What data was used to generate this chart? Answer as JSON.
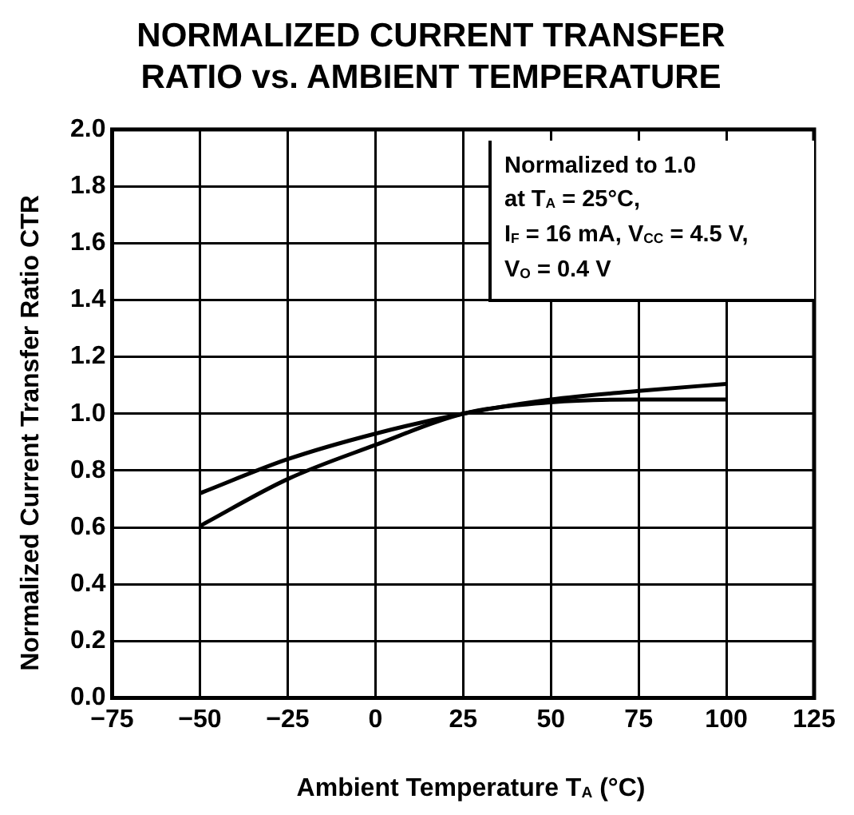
{
  "chart_data": {
    "type": "line",
    "title": "NORMALIZED CURRENT TRANSFER RATIO vs. AMBIENT TEMPERATURE",
    "xlabel": "Ambient Temperature  T$_{A}$ (°C)",
    "ylabel": "Normalized Current Transfer Ratio  CTR",
    "x": [
      -50,
      -25,
      0,
      25,
      50,
      75,
      100
    ],
    "series": [
      {
        "color": "#000000",
        "values": [
          0.72,
          0.84,
          0.93,
          1.0,
          1.05,
          1.08,
          1.105
        ]
      },
      {
        "color": "#000000",
        "values": [
          0.605,
          0.77,
          0.89,
          1.0,
          1.04,
          1.05,
          1.05
        ]
      }
    ],
    "xlim": [
      -75,
      125
    ],
    "xticks": [
      {
        "value": -75,
        "label": "−75"
      },
      {
        "value": -50,
        "label": "−50"
      },
      {
        "value": -25,
        "label": "−25"
      },
      0,
      25,
      50,
      75,
      100,
      125
    ],
    "ylim": [
      0,
      2
    ],
    "yticks": [
      {
        "value": 0,
        "label": "0.0"
      },
      0.2,
      0.4,
      0.6,
      0.8,
      {
        "value": 1,
        "label": "1.0"
      },
      1.2,
      1.4,
      1.6,
      1.8,
      {
        "value": 2,
        "label": "2.0"
      }
    ],
    "annotations": [
      "Normalized to 1.0\nat T$_{A}$ = 25°C,\nI$_{F}$ = 16 mA, V$_{CC}$ = 4.5 V,\nV$_{O}$ = 0.4 V"
    ],
    "grid": true,
    "legend": false,
    "marker": "none",
    "line_style": "solid"
  }
}
